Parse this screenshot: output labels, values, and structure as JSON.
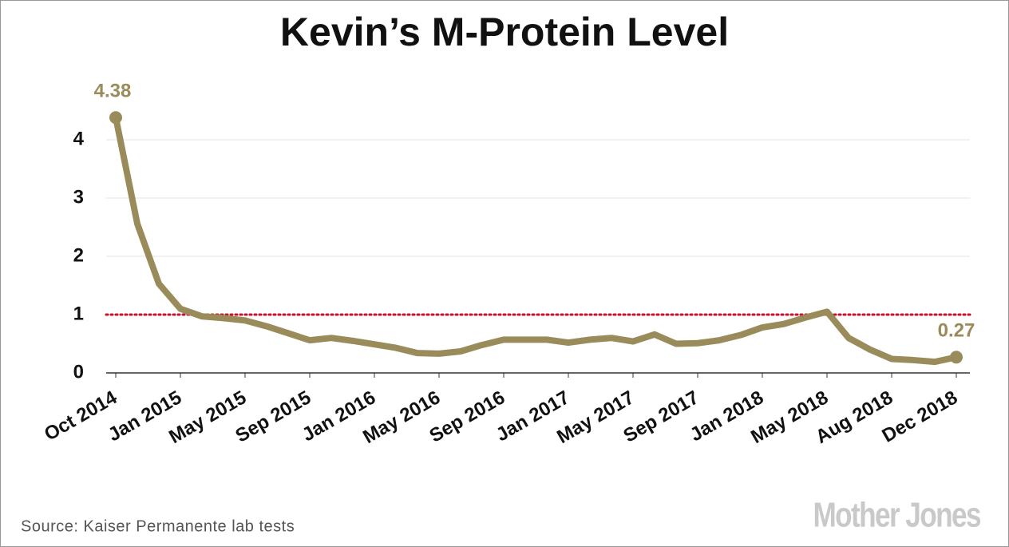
{
  "chart_data": {
    "type": "line",
    "title": "Kevin’s M-Protein Level",
    "source": "Source: Kaiser Permanente lab tests",
    "logo": "Mother Jones",
    "categories": [
      "Oct 2014",
      null,
      null,
      "Jan 2015",
      null,
      null,
      "May 2015",
      null,
      null,
      "Sep 2015",
      null,
      null,
      "Jan 2016",
      null,
      null,
      "May 2016",
      null,
      null,
      "Sep 2016",
      null,
      null,
      "Jan 2017",
      null,
      null,
      "May 2017",
      null,
      null,
      "Sep 2017",
      null,
      null,
      "Jan 2018",
      null,
      null,
      "May 2018",
      null,
      null,
      "Aug 2018",
      null,
      null,
      "Dec 2018"
    ],
    "series": [
      {
        "name": "M-Protein",
        "color": "#9a8c5a",
        "values": [
          4.38,
          2.56,
          1.53,
          1.1,
          0.97,
          0.94,
          0.9,
          0.8,
          0.68,
          0.56,
          0.6,
          0.55,
          0.49,
          0.43,
          0.34,
          0.33,
          0.37,
          0.48,
          0.57,
          0.57,
          0.57,
          0.52,
          0.57,
          0.6,
          0.54,
          0.66,
          0.5,
          0.51,
          0.56,
          0.65,
          0.78,
          0.84,
          0.95,
          1.05,
          0.6,
          0.4,
          0.24,
          0.22,
          0.19,
          0.27
        ]
      }
    ],
    "threshold": {
      "value": 1,
      "color": "#c8102e"
    },
    "ylim": [
      0,
      5
    ],
    "yticks": [
      0,
      1,
      2,
      3,
      4
    ],
    "grid": true
  }
}
